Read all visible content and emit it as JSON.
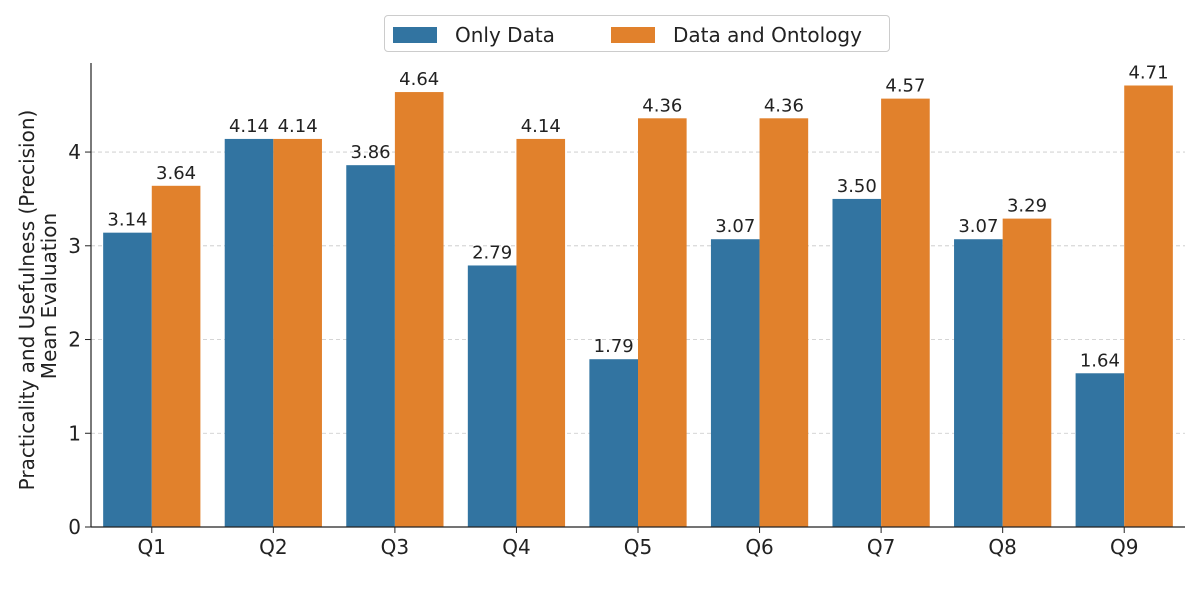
{
  "chart_data": {
    "type": "bar",
    "title": "",
    "xlabel": "",
    "ylabel_lines": [
      "Practicality and Usefulness (Precision)",
      "Mean Evaluation"
    ],
    "categories": [
      "Q1",
      "Q2",
      "Q3",
      "Q4",
      "Q5",
      "Q6",
      "Q7",
      "Q8",
      "Q9"
    ],
    "series": [
      {
        "name": "Only Data",
        "color": "#3274a1",
        "values": [
          3.14,
          4.14,
          3.86,
          2.79,
          1.79,
          3.07,
          3.5,
          3.07,
          1.64
        ],
        "labels": [
          "3.14",
          "4.14",
          "3.86",
          "2.79",
          "1.79",
          "3.07",
          "3.50",
          "3.07",
          "1.64"
        ]
      },
      {
        "name": "Data and Ontology",
        "color": "#e1812c",
        "values": [
          3.64,
          4.14,
          4.64,
          4.14,
          4.36,
          4.36,
          4.57,
          3.29,
          4.71
        ],
        "labels": [
          "3.64",
          "4.14",
          "4.64",
          "4.14",
          "4.36",
          "4.36",
          "4.57",
          "3.29",
          "4.71"
        ]
      }
    ],
    "yticks": [
      "0",
      "1",
      "2",
      "3",
      "4"
    ],
    "ylim": [
      0,
      4.95
    ],
    "grid": "y-dashed",
    "legend_position": "top-center"
  }
}
